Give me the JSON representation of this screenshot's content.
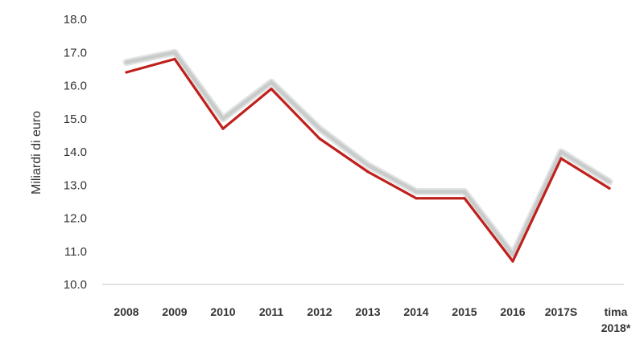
{
  "chart_data": {
    "type": "line",
    "ylabel": "Miliardi di euro",
    "xlabel": "",
    "title": "",
    "categories": [
      "2008",
      "2009",
      "2010",
      "2011",
      "2012",
      "2013",
      "2014",
      "2015",
      "2016",
      "2017S",
      "tima 2018*"
    ],
    "yticks": [
      "10.0",
      "11.0",
      "12.0",
      "13.0",
      "14.0",
      "15.0",
      "16.0",
      "17.0",
      "18.0"
    ],
    "ylim": [
      10.0,
      18.0
    ],
    "grid": false,
    "legend": "none",
    "series": [
      {
        "color": "#c0201c",
        "values": [
          16.4,
          16.8,
          14.7,
          15.9,
          14.4,
          13.4,
          12.6,
          12.6,
          10.7,
          13.8,
          12.9
        ]
      },
      {
        "color": "#c8cccb",
        "values": [
          16.7,
          17.0,
          15.0,
          16.1,
          14.7,
          13.6,
          12.8,
          12.8,
          10.9,
          14.0,
          13.1
        ]
      }
    ]
  }
}
